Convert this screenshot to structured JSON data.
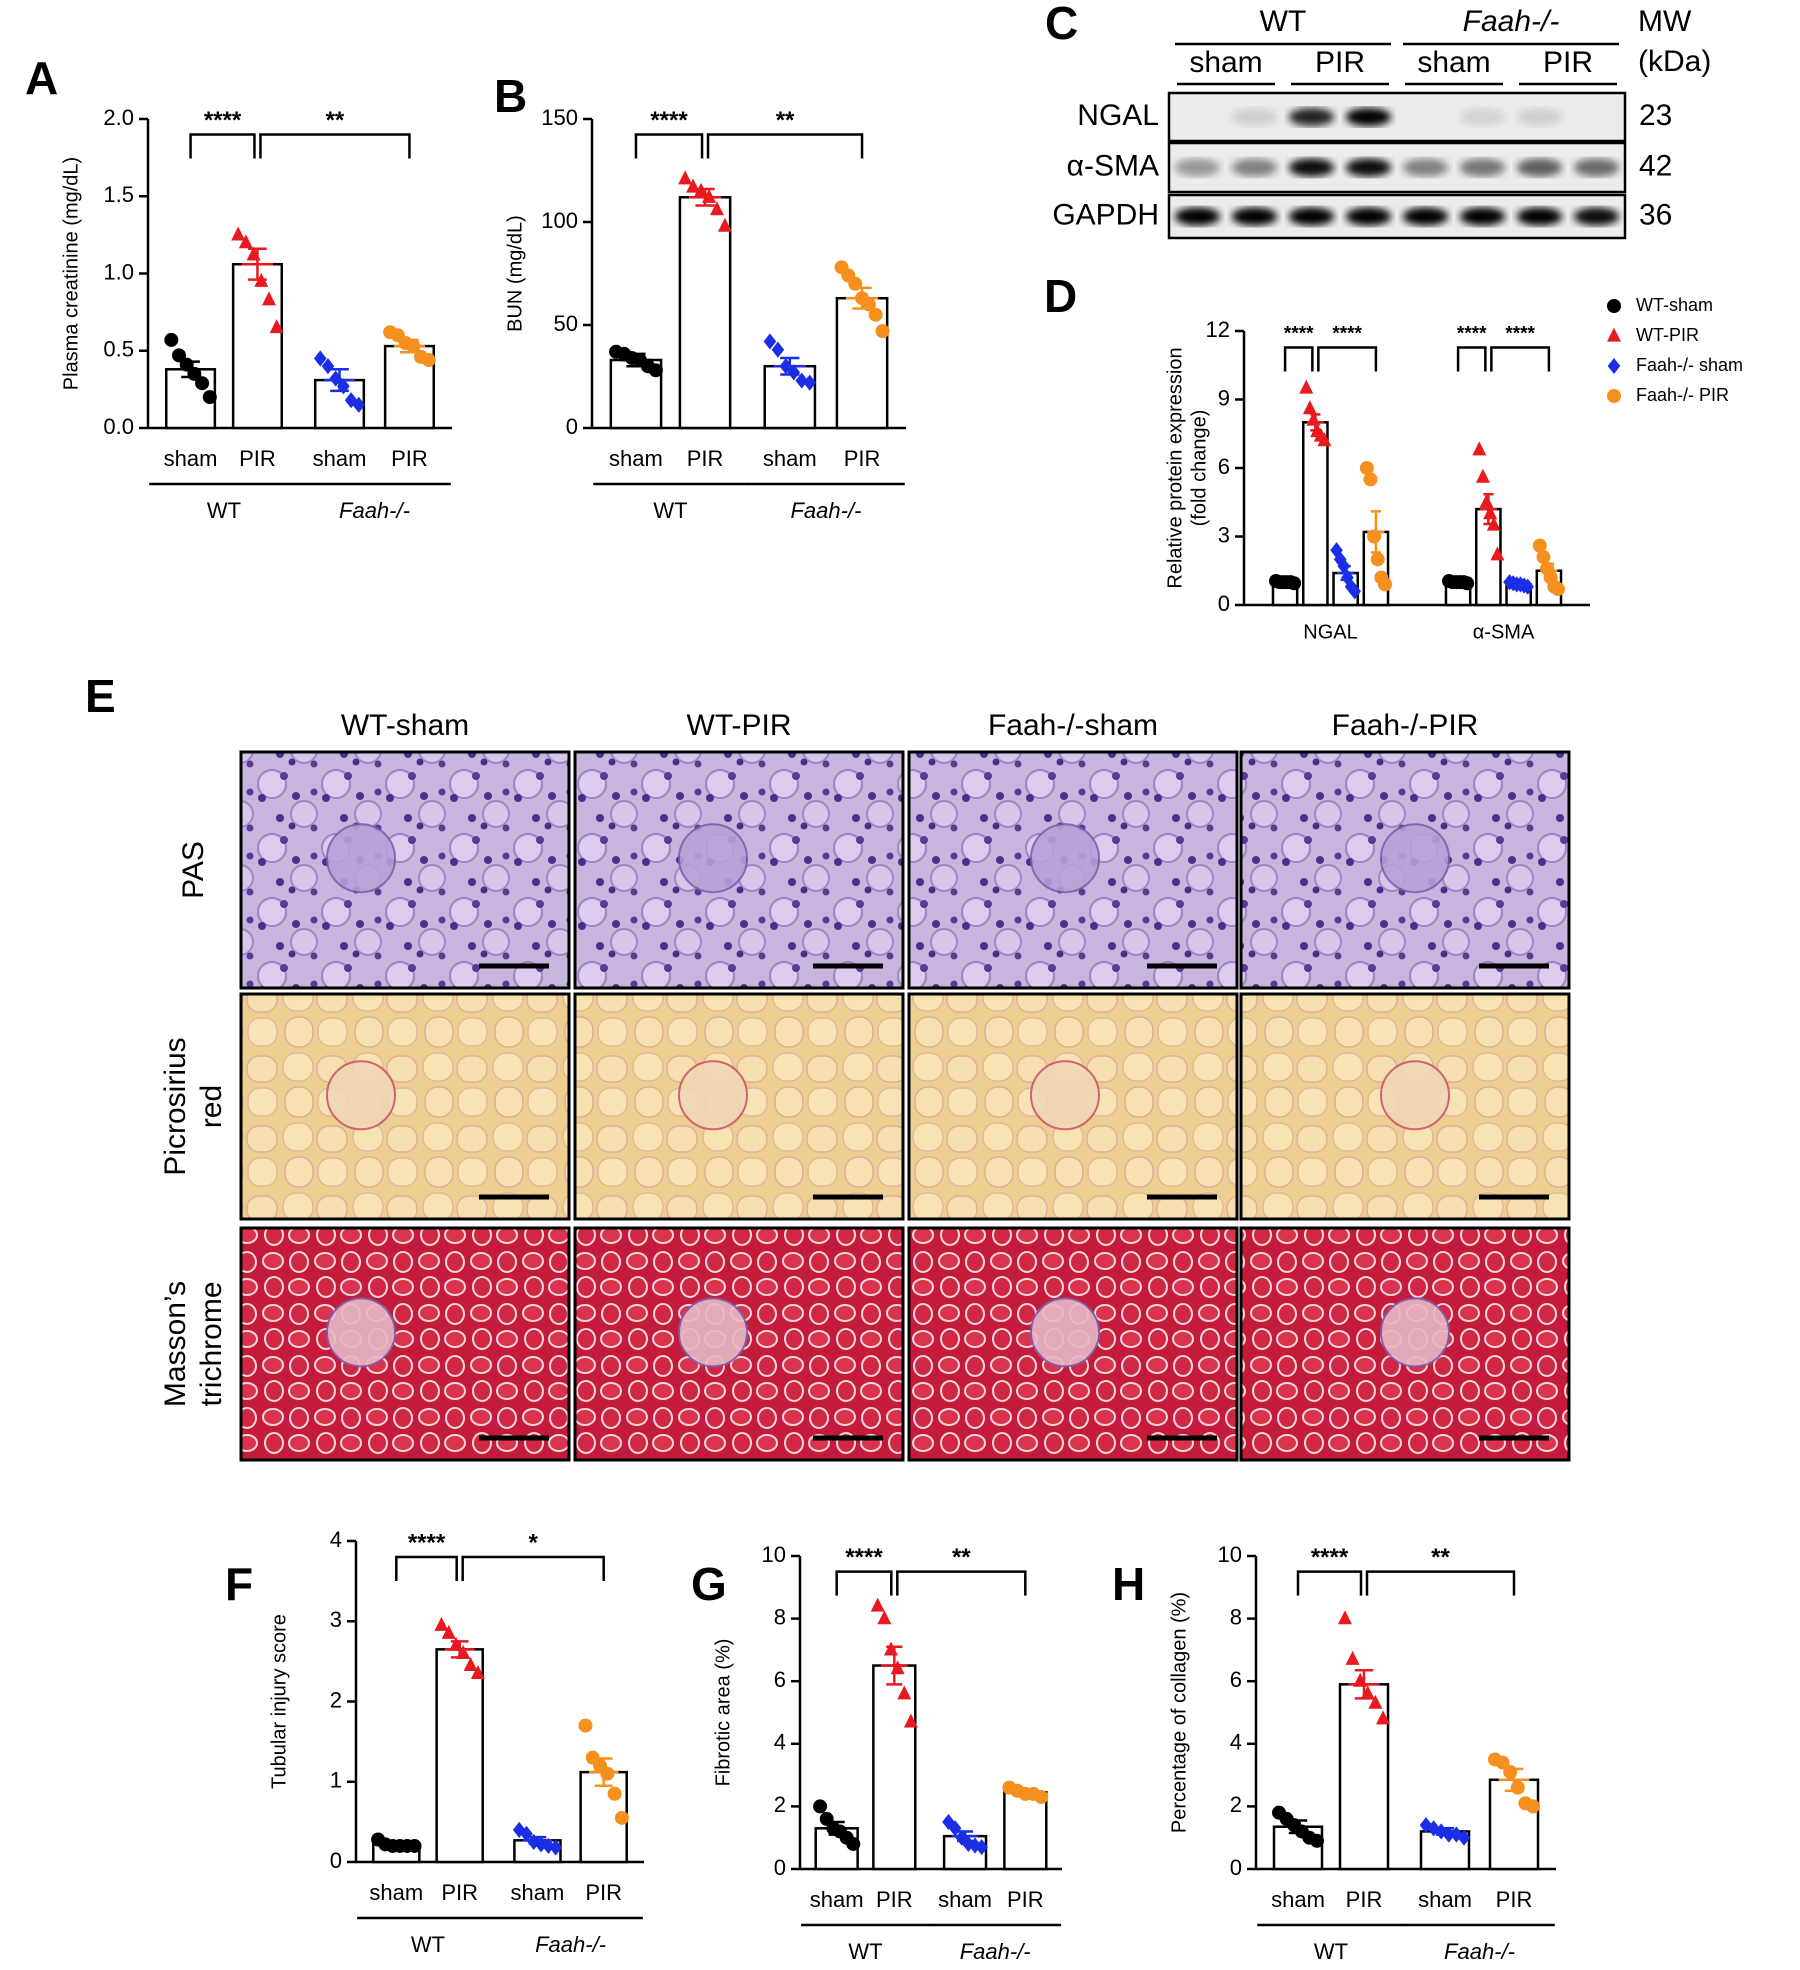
{
  "chart_data": [
    {
      "type": "bar",
      "panel": "A",
      "ylabel": "Plasma creatinine (mg/dL)",
      "categories": [
        "sham",
        "PIR",
        "sham",
        "PIR"
      ],
      "groups": [
        "WT",
        "Faah-/-"
      ],
      "colors": [
        "#000000",
        "#e8191f",
        "#1a2ee6",
        "#f5901e"
      ],
      "markers": [
        "circle",
        "triangle",
        "diamond",
        "circle"
      ],
      "values": [
        0.38,
        1.06,
        0.31,
        0.53
      ],
      "errors": [
        0.05,
        0.1,
        0.07,
        0.04
      ],
      "points": [
        [
          0.57,
          0.47,
          0.41,
          0.35,
          0.29,
          0.2
        ],
        [
          1.25,
          1.2,
          1.12,
          0.95,
          0.83,
          0.65
        ],
        [
          0.45,
          0.4,
          0.32,
          0.27,
          0.18,
          0.15
        ],
        [
          0.62,
          0.6,
          0.55,
          0.53,
          0.46,
          0.44
        ]
      ],
      "ylim": [
        0,
        2
      ],
      "yticks": [
        {
          "value": 0,
          "label": "0.0"
        },
        0.5,
        {
          "value": 1,
          "label": "1.0"
        },
        1.5,
        {
          "value": 2,
          "label": "2.0"
        }
      ],
      "significance": [
        "****",
        "**"
      ]
    },
    {
      "type": "bar",
      "panel": "B",
      "ylabel": "BUN (mg/dL)",
      "categories": [
        "sham",
        "PIR",
        "sham",
        "PIR"
      ],
      "groups": [
        "WT",
        "Faah-/-"
      ],
      "colors": [
        "#000000",
        "#e8191f",
        "#1a2ee6",
        "#f5901e"
      ],
      "markers": [
        "circle",
        "triangle",
        "diamond",
        "circle"
      ],
      "values": [
        33,
        112,
        30,
        63
      ],
      "errors": [
        3,
        4,
        4,
        5
      ],
      "points": [
        [
          37,
          36,
          34,
          33,
          30,
          28
        ],
        [
          121,
          117,
          115,
          112,
          106,
          98
        ],
        [
          42,
          38,
          30,
          27,
          23,
          22
        ],
        [
          78,
          74,
          70,
          63,
          60,
          55,
          47
        ]
      ],
      "ylim": [
        0,
        150
      ],
      "yticks": [
        0,
        50,
        100,
        150
      ],
      "significance": [
        "****",
        "**"
      ]
    },
    {
      "type": "grouped-bar",
      "panel": "D",
      "ylabel": [
        "Relative protein expression",
        "(fold change)"
      ],
      "categories": [
        "NGAL",
        "α-SMA"
      ],
      "series": [
        {
          "name": "WT-sham",
          "color": "#000000",
          "marker": "circle",
          "values": [
            1,
            1
          ],
          "errors": [
            0.03,
            0.03
          ],
          "points": [
            [
              1.05,
              1,
              1,
              1,
              1,
              0.95
            ],
            [
              1.05,
              1,
              1,
              1,
              1,
              0.95
            ]
          ]
        },
        {
          "name": "WT-PIR",
          "color": "#e8191f",
          "marker": "triangle",
          "values": [
            8,
            4.2
          ],
          "errors": [
            0.35,
            0.65
          ],
          "points": [
            [
              9.5,
              8.6,
              8.1,
              7.6,
              7.4,
              7.2
            ],
            [
              6.8,
              5.6,
              4.5,
              4,
              3.5,
              2.2
            ]
          ]
        },
        {
          "name": "Faah-/- sham",
          "color": "#1a2ee6",
          "marker": "diamond",
          "values": [
            1.4,
            0.9
          ],
          "errors": [
            0.3,
            0.05
          ],
          "points": [
            [
              2.4,
              2,
              1.7,
              1.2,
              0.8,
              0.6
            ],
            [
              1,
              0.95,
              0.9,
              0.9,
              0.85,
              0.8
            ]
          ]
        },
        {
          "name": "Faah-/- PIR",
          "color": "#f5901e",
          "marker": "circle",
          "values": [
            3.2,
            1.5
          ],
          "errors": [
            0.9,
            0.3
          ],
          "points": [
            [
              6,
              5.5,
              3,
              2,
              1.2,
              0.9
            ],
            [
              2.6,
              2.1,
              1.6,
              1.2,
              0.8,
              0.7
            ]
          ]
        }
      ],
      "ylim": [
        0,
        12
      ],
      "yticks": [
        0,
        3,
        6,
        9,
        12
      ],
      "legend": "upper right",
      "significance": [
        [
          "****",
          "****"
        ],
        [
          "****",
          "****"
        ]
      ]
    },
    {
      "type": "bar",
      "panel": "F",
      "ylabel": "Tubular injury score",
      "categories": [
        "sham",
        "PIR",
        "sham",
        "PIR"
      ],
      "groups": [
        "WT",
        "Faah-/-"
      ],
      "colors": [
        "#000000",
        "#e8191f",
        "#1a2ee6",
        "#f5901e"
      ],
      "markers": [
        "circle",
        "triangle",
        "diamond",
        "circle"
      ],
      "values": [
        0.22,
        2.65,
        0.27,
        1.12
      ],
      "errors": [
        0.02,
        0.1,
        0.04,
        0.17
      ],
      "points": [
        [
          0.28,
          0.22,
          0.2,
          0.2,
          0.2,
          0.2
        ],
        [
          2.95,
          2.85,
          2.7,
          2.6,
          2.45,
          2.35
        ],
        [
          0.4,
          0.35,
          0.25,
          0.22,
          0.2,
          0.18
        ],
        [
          1.7,
          1.3,
          1.2,
          1.1,
          0.85,
          0.55
        ]
      ],
      "ylim": [
        0,
        4
      ],
      "yticks": [
        0,
        1,
        2,
        3,
        4
      ],
      "significance": [
        "****",
        "*"
      ]
    },
    {
      "type": "bar",
      "panel": "G",
      "ylabel": "Fibrotic area (%)",
      "categories": [
        "sham",
        "PIR",
        "sham",
        "PIR"
      ],
      "groups": [
        "WT",
        "Faah-/-"
      ],
      "colors": [
        "#000000",
        "#e8191f",
        "#1a2ee6",
        "#f5901e"
      ],
      "markers": [
        "circle",
        "triangle",
        "diamond",
        "circle"
      ],
      "values": [
        1.3,
        6.5,
        1.05,
        2.45
      ],
      "errors": [
        0.2,
        0.6,
        0.15,
        0.1
      ],
      "points": [
        [
          2,
          1.6,
          1.3,
          1.2,
          1,
          0.8
        ],
        [
          8.4,
          8,
          7,
          6.4,
          5.6,
          4.7
        ],
        [
          1.5,
          1.3,
          1,
          0.8,
          0.75,
          0.7
        ],
        [
          2.6,
          2.5,
          2.4,
          2.4,
          2.3
        ]
      ],
      "ylim": [
        0,
        10
      ],
      "yticks": [
        0,
        2,
        4,
        6,
        8,
        10
      ],
      "significance": [
        "****",
        "**"
      ]
    },
    {
      "type": "bar",
      "panel": "H",
      "ylabel": "Percentage of collagen (%)",
      "categories": [
        "sham",
        "PIR",
        "sham",
        "PIR"
      ],
      "groups": [
        "WT",
        "Faah-/-"
      ],
      "colors": [
        "#000000",
        "#e8191f",
        "#1a2ee6",
        "#f5901e"
      ],
      "markers": [
        "circle",
        "triangle",
        "diamond",
        "circle"
      ],
      "values": [
        1.35,
        5.9,
        1.2,
        2.85
      ],
      "errors": [
        0.2,
        0.45,
        0.1,
        0.35
      ],
      "points": [
        [
          1.8,
          1.6,
          1.4,
          1.2,
          1,
          0.9
        ],
        [
          8,
          6.7,
          6,
          5.6,
          5.3,
          4.8
        ],
        [
          1.4,
          1.3,
          1.2,
          1.1,
          1.1,
          1
        ],
        [
          3.5,
          3.4,
          3.1,
          2.6,
          2.1,
          2
        ]
      ],
      "ylim": [
        0,
        10
      ],
      "yticks": [
        0,
        2,
        4,
        6,
        8,
        10
      ],
      "significance": [
        "****",
        "**"
      ]
    }
  ],
  "blot": {
    "panel": "C",
    "groups": [
      {
        "name": "WT",
        "lanes": [
          "sham",
          "PIR"
        ]
      },
      {
        "name": "Faah-/-",
        "lanes": [
          "sham",
          "PIR"
        ]
      }
    ],
    "mw_header": [
      "MW",
      "(kDa)"
    ],
    "rows": [
      {
        "protein": "NGAL",
        "mw": 23
      },
      {
        "protein": "α-SMA",
        "mw": 42
      },
      {
        "protein": "GAPDH",
        "mw": 36
      }
    ]
  },
  "histology": {
    "panel": "E",
    "columns": [
      "WT-sham",
      "WT-PIR",
      "Faah-/-sham",
      "Faah-/-PIR"
    ],
    "rows": [
      [
        "PAS"
      ],
      [
        "Picrosirius",
        "red"
      ],
      [
        "Masson’s",
        "trichrome"
      ]
    ]
  }
}
